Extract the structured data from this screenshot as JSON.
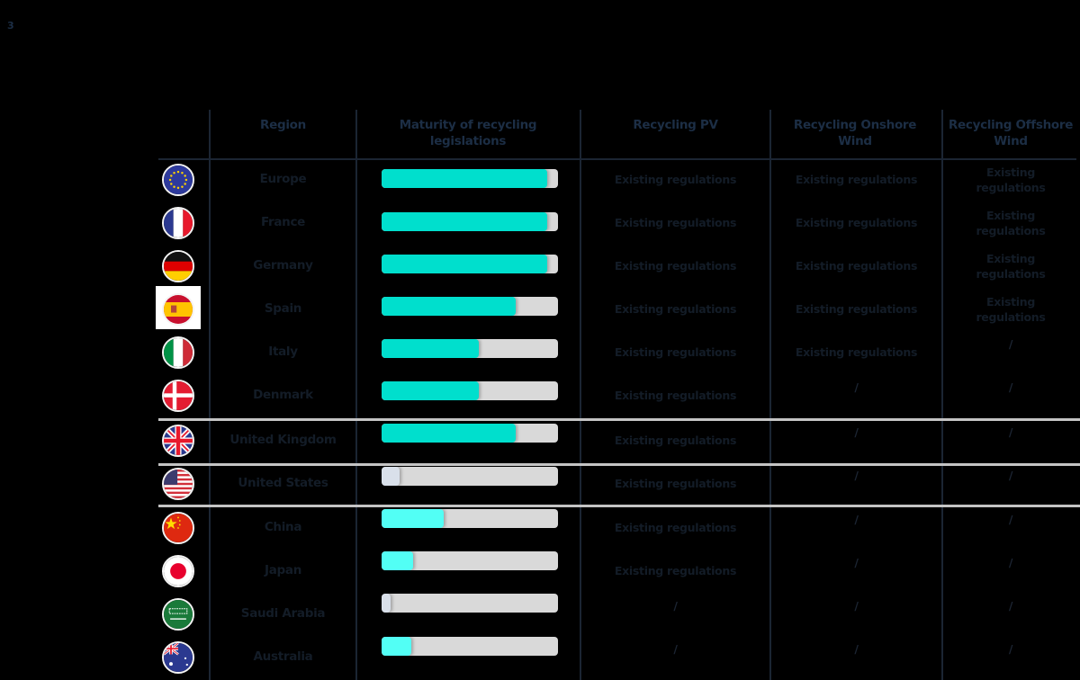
{
  "page": {
    "number": "3"
  },
  "colors": {
    "background": "#000000",
    "header_text": "#1c2e45",
    "body_text": "#131c27",
    "grid_line": "#1b2533",
    "group_separator": "#c4c4c4",
    "track": "#d9d9d9",
    "fill_high": "#00dfcd",
    "fill_mid": "#52fff5",
    "fill_low": "#d9e0ea"
  },
  "table": {
    "headers": {
      "region": "Region",
      "maturity": "Maturity of recycling legislations",
      "pv": "Recycling PV",
      "onshore": "Recycling Onshore Wind",
      "offshore": "Recycling Offshore Wind"
    },
    "rows": [
      {
        "flag": "eu-flag-icon",
        "region": "Europe",
        "maturity": 94,
        "fill": "#00dfcd",
        "pv": "Existing regulations",
        "onshore": "Existing regulations",
        "offshore": "Existing regulations"
      },
      {
        "flag": "france-flag-icon",
        "region": "France",
        "maturity": 94,
        "fill": "#00dfcd",
        "pv": "Existing regulations",
        "onshore": "Existing regulations",
        "offshore": "Existing regulations"
      },
      {
        "flag": "germany-flag-icon",
        "region": "Germany",
        "maturity": 94,
        "fill": "#00dfcd",
        "pv": "Existing regulations",
        "onshore": "Existing regulations",
        "offshore": "Existing regulations"
      },
      {
        "flag": "spain-flag-icon",
        "region": "Spain",
        "maturity": 76,
        "fill": "#00dfcd",
        "pv": "Existing regulations",
        "onshore": "Existing regulations",
        "offshore": "Existing regulations"
      },
      {
        "flag": "italy-flag-icon",
        "region": "Italy",
        "maturity": 55,
        "fill": "#00dfcd",
        "pv": "Existing regulations",
        "onshore": "Existing regulations",
        "offshore": "/"
      },
      {
        "flag": "denmark-flag-icon",
        "region": "Denmark",
        "maturity": 55,
        "fill": "#00dfcd",
        "pv": "Existing regulations",
        "onshore": "/",
        "offshore": "/"
      },
      {
        "flag": "uk-flag-icon",
        "region": "United Kingdom",
        "maturity": 76,
        "fill": "#00dfcd",
        "pv": "Existing regulations",
        "onshore": "/",
        "offshore": "/"
      },
      {
        "flag": "us-flag-icon",
        "region": "United States",
        "maturity": 10,
        "fill": "#d9e0ea",
        "pv": "Existing regulations",
        "onshore": "/",
        "offshore": "/"
      },
      {
        "flag": "china-flag-icon",
        "region": "China",
        "maturity": 35,
        "fill": "#52fff5",
        "pv": "Existing regulations",
        "onshore": "/",
        "offshore": "/"
      },
      {
        "flag": "japan-flag-icon",
        "region": "Japan",
        "maturity": 18,
        "fill": "#52fff5",
        "pv": "Existing regulations",
        "onshore": "/",
        "offshore": "/"
      },
      {
        "flag": "saudi-arabia-flag-icon",
        "region": "Saudi Arabia",
        "maturity": 5,
        "fill": "#d9e0ea",
        "pv": "/",
        "onshore": "/",
        "offshore": "/"
      },
      {
        "flag": "australia-flag-icon",
        "region": "Australia",
        "maturity": 17,
        "fill": "#52fff5",
        "pv": "/",
        "onshore": "/",
        "offshore": "/"
      }
    ]
  }
}
